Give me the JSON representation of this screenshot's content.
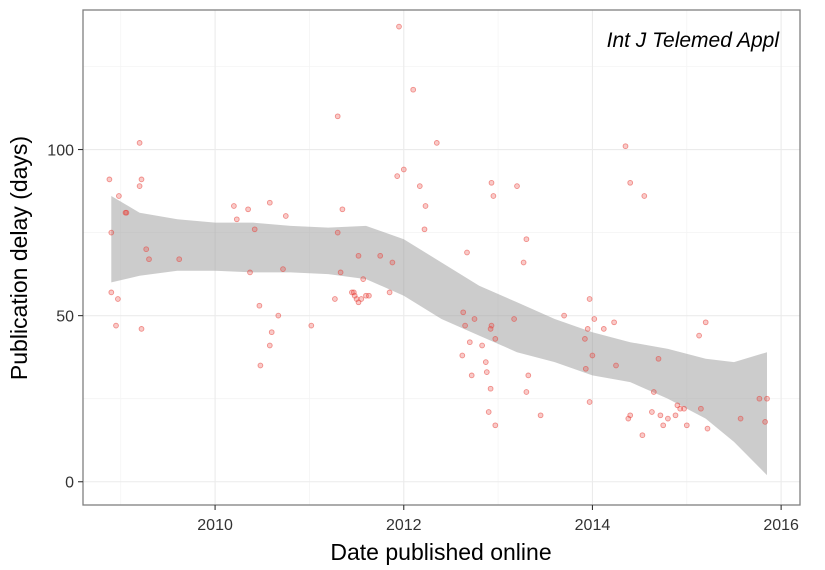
{
  "chart_data": {
    "type": "scatter",
    "title": "",
    "annotation": "Int J Telemed Appl",
    "xlabel": "Date published online",
    "ylabel": "Publication delay (days)",
    "x_unit": "year",
    "xlim": [
      2008.6,
      2016.2
    ],
    "ylim": [
      -7,
      142
    ],
    "x_ticks": [
      2010,
      2012,
      2014,
      2016
    ],
    "x_tick_labels": [
      "2010",
      "2012",
      "2014",
      "2016"
    ],
    "y_ticks": [
      0,
      50,
      100
    ],
    "y_tick_labels": [
      "0",
      "50",
      "100"
    ],
    "grid": true,
    "legend": "none",
    "point_color": "#e8413a",
    "band_color": "#999999",
    "points": [
      [
        2008.88,
        91
      ],
      [
        2008.9,
        75
      ],
      [
        2008.9,
        57
      ],
      [
        2008.95,
        47
      ],
      [
        2008.98,
        86
      ],
      [
        2008.97,
        55
      ],
      [
        2009.05,
        81
      ],
      [
        2009.06,
        81
      ],
      [
        2009.2,
        102
      ],
      [
        2009.2,
        89
      ],
      [
        2009.22,
        91
      ],
      [
        2009.22,
        46
      ],
      [
        2009.27,
        70
      ],
      [
        2009.3,
        67
      ],
      [
        2009.62,
        67
      ],
      [
        2010.2,
        83
      ],
      [
        2010.23,
        79
      ],
      [
        2010.35,
        82
      ],
      [
        2010.37,
        63
      ],
      [
        2010.42,
        76
      ],
      [
        2010.47,
        53
      ],
      [
        2010.48,
        35
      ],
      [
        2010.58,
        84
      ],
      [
        2010.58,
        41
      ],
      [
        2010.6,
        45
      ],
      [
        2010.67,
        50
      ],
      [
        2010.72,
        64
      ],
      [
        2010.75,
        80
      ],
      [
        2011.02,
        47
      ],
      [
        2011.27,
        55
      ],
      [
        2011.3,
        110
      ],
      [
        2011.3,
        75
      ],
      [
        2011.33,
        63
      ],
      [
        2011.35,
        82
      ],
      [
        2011.45,
        57
      ],
      [
        2011.47,
        57
      ],
      [
        2011.48,
        56
      ],
      [
        2011.5,
        55
      ],
      [
        2011.52,
        54
      ],
      [
        2011.52,
        68
      ],
      [
        2011.55,
        55
      ],
      [
        2011.57,
        61
      ],
      [
        2011.6,
        56
      ],
      [
        2011.63,
        56
      ],
      [
        2011.75,
        68
      ],
      [
        2011.85,
        57
      ],
      [
        2011.88,
        66
      ],
      [
        2011.93,
        92
      ],
      [
        2011.95,
        137
      ],
      [
        2012.0,
        94
      ],
      [
        2012.1,
        118
      ],
      [
        2012.17,
        89
      ],
      [
        2012.22,
        76
      ],
      [
        2012.23,
        83
      ],
      [
        2012.35,
        102
      ],
      [
        2012.62,
        38
      ],
      [
        2012.63,
        51
      ],
      [
        2012.65,
        47
      ],
      [
        2012.67,
        69
      ],
      [
        2012.7,
        42
      ],
      [
        2012.72,
        32
      ],
      [
        2012.75,
        49
      ],
      [
        2012.83,
        41
      ],
      [
        2012.87,
        36
      ],
      [
        2012.88,
        33
      ],
      [
        2012.9,
        21
      ],
      [
        2012.92,
        46
      ],
      [
        2012.92,
        28
      ],
      [
        2012.93,
        47
      ],
      [
        2012.93,
        90
      ],
      [
        2012.95,
        86
      ],
      [
        2012.97,
        17
      ],
      [
        2012.97,
        43
      ],
      [
        2013.17,
        49
      ],
      [
        2013.2,
        89
      ],
      [
        2013.27,
        66
      ],
      [
        2013.3,
        73
      ],
      [
        2013.3,
        27
      ],
      [
        2013.32,
        32
      ],
      [
        2013.45,
        20
      ],
      [
        2013.7,
        50
      ],
      [
        2013.92,
        43
      ],
      [
        2013.93,
        34
      ],
      [
        2013.95,
        46
      ],
      [
        2013.97,
        55
      ],
      [
        2013.97,
        24
      ],
      [
        2014.0,
        38
      ],
      [
        2014.02,
        49
      ],
      [
        2014.12,
        46
      ],
      [
        2014.23,
        48
      ],
      [
        2014.25,
        35
      ],
      [
        2014.35,
        101
      ],
      [
        2014.38,
        19
      ],
      [
        2014.4,
        90
      ],
      [
        2014.4,
        20
      ],
      [
        2014.53,
        14
      ],
      [
        2014.55,
        86
      ],
      [
        2014.63,
        21
      ],
      [
        2014.65,
        27
      ],
      [
        2014.7,
        37
      ],
      [
        2014.72,
        20
      ],
      [
        2014.75,
        17
      ],
      [
        2014.8,
        19
      ],
      [
        2014.88,
        20
      ],
      [
        2014.9,
        23
      ],
      [
        2014.93,
        22
      ],
      [
        2014.97,
        22
      ],
      [
        2015.0,
        17
      ],
      [
        2015.13,
        44
      ],
      [
        2015.15,
        22
      ],
      [
        2015.2,
        48
      ],
      [
        2015.22,
        16
      ],
      [
        2015.57,
        19
      ],
      [
        2015.77,
        25
      ],
      [
        2015.83,
        18
      ],
      [
        2015.85,
        25
      ]
    ],
    "smooth_band": {
      "x": [
        2008.9,
        2009.2,
        2009.6,
        2010.0,
        2010.4,
        2010.8,
        2011.2,
        2011.6,
        2012.0,
        2012.4,
        2012.8,
        2013.2,
        2013.6,
        2014.0,
        2014.4,
        2014.8,
        2015.2,
        2015.5,
        2015.85
      ],
      "upper": [
        86,
        81,
        79,
        78,
        78,
        77,
        76.5,
        77,
        73,
        66,
        59,
        54,
        49,
        45,
        42,
        40,
        37,
        36,
        39
      ],
      "lower": [
        60,
        62,
        63.5,
        63.5,
        63,
        63,
        62.5,
        61,
        56,
        49,
        44,
        39,
        36,
        32,
        30,
        25,
        19,
        12,
        2
      ]
    }
  }
}
